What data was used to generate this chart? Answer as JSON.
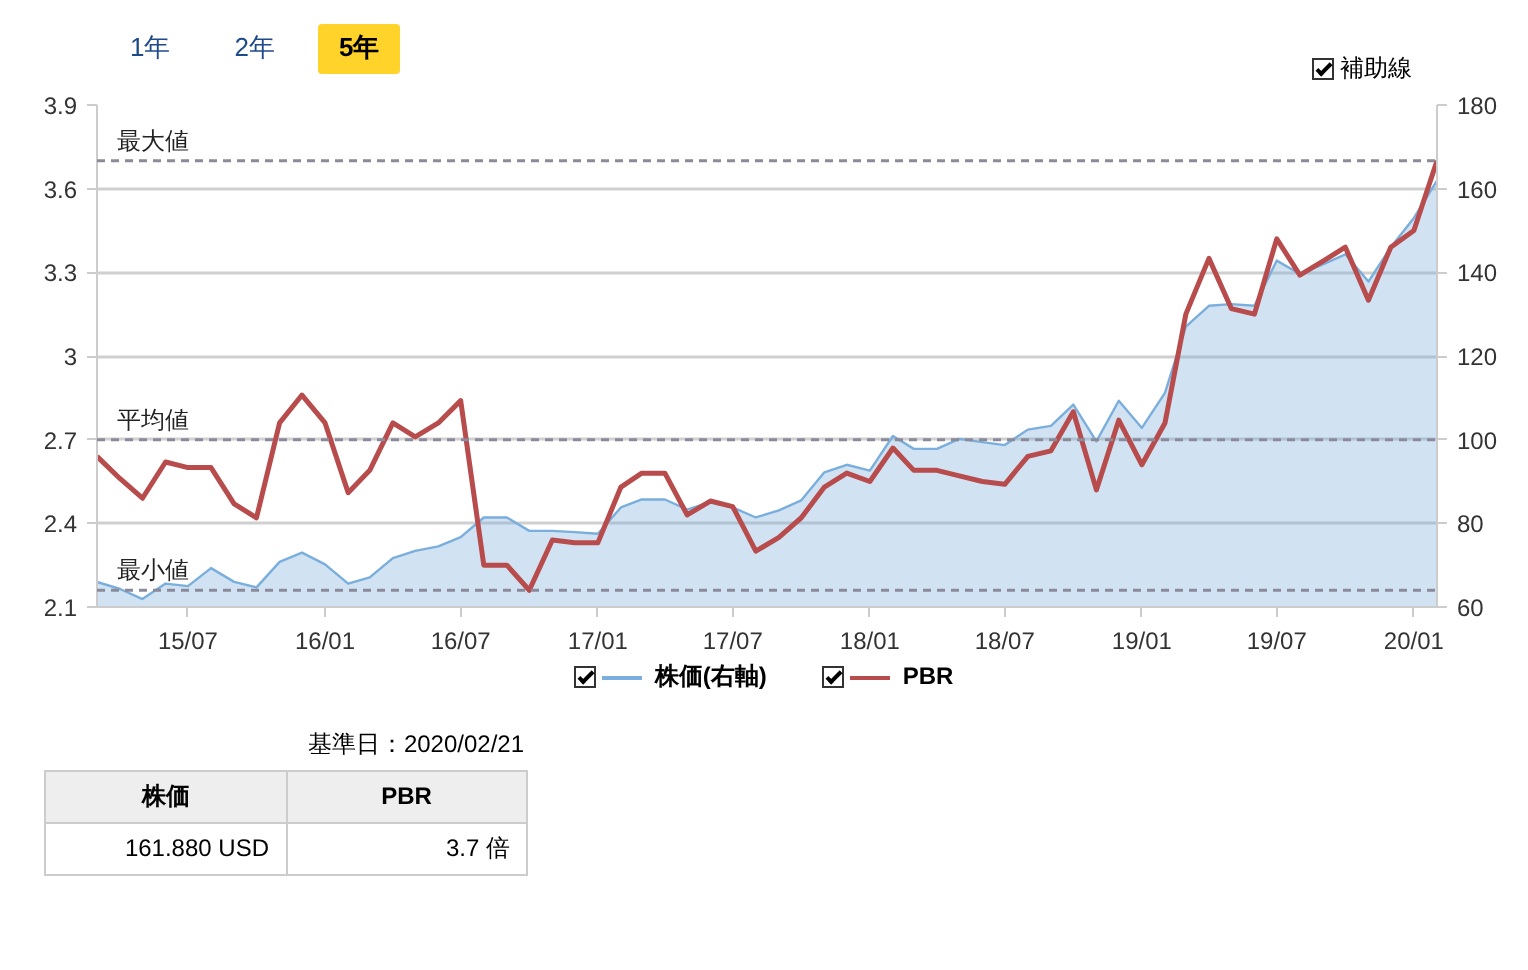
{
  "chart_data": {
    "type": "line",
    "x": [
      "2015-03",
      "2015-04",
      "2015-05",
      "2015-06",
      "2015-07",
      "2015-08",
      "2015-09",
      "2015-10",
      "2015-11",
      "2015-12",
      "2016-01",
      "2016-02",
      "2016-03",
      "2016-04",
      "2016-05",
      "2016-06",
      "2016-07",
      "2016-08",
      "2016-09",
      "2016-10",
      "2016-11",
      "2016-12",
      "2017-01",
      "2017-02",
      "2017-03",
      "2017-04",
      "2017-05",
      "2017-06",
      "2017-07",
      "2017-08",
      "2017-09",
      "2017-10",
      "2017-11",
      "2017-12",
      "2018-01",
      "2018-02",
      "2018-03",
      "2018-04",
      "2018-05",
      "2018-06",
      "2018-07",
      "2018-08",
      "2018-09",
      "2018-10",
      "2018-11",
      "2018-12",
      "2019-01",
      "2019-02",
      "2019-03",
      "2019-04",
      "2019-05",
      "2019-06",
      "2019-07",
      "2019-08",
      "2019-09",
      "2019-10",
      "2019-11",
      "2019-12",
      "2020-01",
      "2020-02"
    ],
    "series": [
      {
        "name": "株価(右軸)",
        "type": "area",
        "axis": "y2",
        "color": "#7aaedc",
        "values": [
          66.0,
          64.3,
          61.9,
          65.6,
          65.0,
          69.3,
          66.0,
          64.7,
          70.8,
          73.0,
          70.2,
          65.6,
          67.1,
          71.7,
          73.4,
          74.5,
          76.7,
          81.4,
          81.4,
          78.2,
          78.2,
          77.9,
          77.5,
          83.8,
          85.7,
          85.7,
          83.3,
          85.1,
          83.8,
          81.4,
          83.1,
          85.5,
          92.2,
          94.0,
          92.6,
          100.9,
          97.8,
          97.8,
          100.2,
          99.4,
          98.7,
          102.4,
          103.3,
          108.4,
          99.6,
          109.3,
          102.8,
          111.2,
          127.0,
          132.0,
          132.4,
          132.0,
          142.8,
          139.6,
          141.9,
          144.3,
          137.8,
          146.0,
          153.0,
          161.9
        ]
      },
      {
        "name": "PBR",
        "color": "#b84b4b",
        "values": [
          2.64,
          2.56,
          2.49,
          2.62,
          2.6,
          2.6,
          2.47,
          2.42,
          2.76,
          2.86,
          2.76,
          2.51,
          2.59,
          2.76,
          2.71,
          2.76,
          2.84,
          2.25,
          2.25,
          2.16,
          2.34,
          2.33,
          2.33,
          2.53,
          2.58,
          2.58,
          2.43,
          2.48,
          2.46,
          2.3,
          2.35,
          2.42,
          2.53,
          2.58,
          2.55,
          2.67,
          2.59,
          2.59,
          2.57,
          2.55,
          2.54,
          2.64,
          2.66,
          2.8,
          2.52,
          2.77,
          2.61,
          2.76,
          3.15,
          3.35,
          3.17,
          3.15,
          3.42,
          3.29,
          3.34,
          3.39,
          3.2,
          3.39,
          3.45,
          3.7
        ]
      }
    ],
    "xlim": [
      "2015-03",
      "2020-02"
    ],
    "xticks": [
      {
        "value": "2015-07",
        "label": "15/07"
      },
      {
        "value": "2016-01",
        "label": "16/01"
      },
      {
        "value": "2016-07",
        "label": "16/07"
      },
      {
        "value": "2017-01",
        "label": "17/01"
      },
      {
        "value": "2017-07",
        "label": "17/07"
      },
      {
        "value": "2018-01",
        "label": "18/01"
      },
      {
        "value": "2018-07",
        "label": "18/07"
      },
      {
        "value": "2019-01",
        "label": "19/01"
      },
      {
        "value": "2019-07",
        "label": "19/07"
      },
      {
        "value": "2020-01",
        "label": "20/01"
      }
    ],
    "ylim": [
      2.1,
      3.9
    ],
    "yticks": [
      2.1,
      2.4,
      2.7,
      3,
      3.3,
      3.6,
      3.9
    ],
    "y2lim": [
      60,
      180
    ],
    "y2ticks": [
      60,
      80,
      100,
      120,
      140,
      160,
      180
    ],
    "ref_lines": [
      {
        "axis": "y",
        "value": 3.7,
        "label": "最大値",
        "color": "#8a8a9a",
        "line_style": "dashed"
      },
      {
        "axis": "y",
        "value": 2.7,
        "label": "平均値",
        "color": "#8a8a9a",
        "line_style": "dashed"
      },
      {
        "axis": "y",
        "value": 2.16,
        "label": "最小値",
        "color": "#8a8a9a",
        "line_style": "dashed"
      }
    ],
    "grid": "y",
    "legend": "bottom",
    "marker": "none",
    "line_style": "solid",
    "annotations": [
      "1年",
      "2年",
      "5年",
      "補助線",
      "基準日：2020/02/21",
      "株価",
      "PBR",
      "161.880 USD",
      "3.7 倍"
    ]
  }
}
